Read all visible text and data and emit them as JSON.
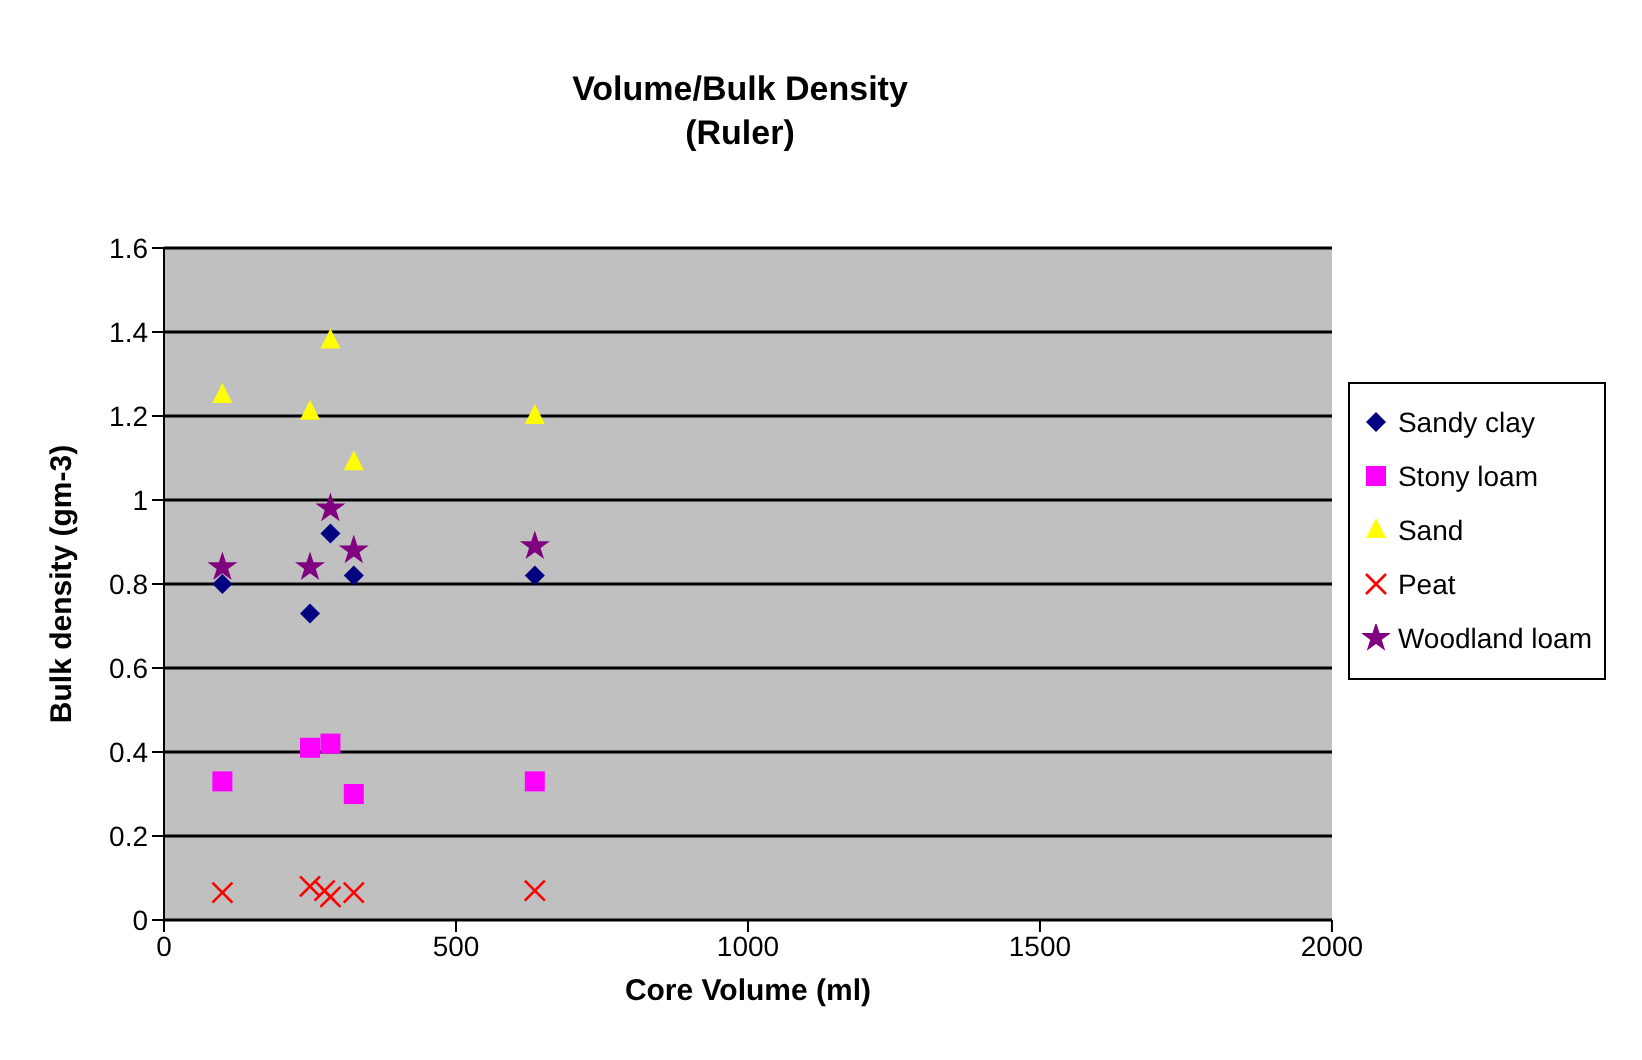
{
  "chart_data": {
    "type": "scatter",
    "title": "Volume/Bulk Density\n(Ruler)",
    "xlabel": "Core Volume (ml)",
    "ylabel": "Bulk density (gm-3)",
    "xlim": [
      0,
      2000
    ],
    "xticks": [
      0,
      500,
      1000,
      1500,
      2000
    ],
    "ylim": [
      0,
      1.6
    ],
    "yticks": [
      0,
      0.2,
      0.4,
      0.6,
      0.8,
      1,
      1.2,
      1.4,
      1.6
    ],
    "grid": "y",
    "legend": "right",
    "series": [
      {
        "name": "Sandy clay",
        "color": "#000080",
        "marker": "diamond",
        "x": [
          100,
          250,
          285,
          325,
          635
        ],
        "values": [
          0.8,
          0.73,
          0.92,
          0.82,
          0.82
        ]
      },
      {
        "name": "Stony loam",
        "color": "#ff00ff",
        "marker": "square",
        "x": [
          100,
          250,
          285,
          325,
          635
        ],
        "values": [
          0.33,
          0.41,
          0.42,
          0.3,
          0.33
        ]
      },
      {
        "name": "Sand",
        "color": "#ffff00",
        "marker": "triangle",
        "x": [
          100,
          250,
          285,
          325,
          635
        ],
        "values": [
          1.25,
          1.21,
          1.38,
          1.09,
          1.2
        ]
      },
      {
        "name": "Peat",
        "color": "#ff0000",
        "marker": "cross",
        "x": [
          100,
          250,
          275,
          285,
          325,
          635
        ],
        "values": [
          0.065,
          0.08,
          0.07,
          0.055,
          0.065,
          0.07
        ]
      },
      {
        "name": "Woodland loam",
        "color": "#800080",
        "marker": "star",
        "x": [
          100,
          250,
          285,
          325,
          635
        ],
        "values": [
          0.84,
          0.84,
          0.98,
          0.88,
          0.89
        ]
      }
    ]
  }
}
